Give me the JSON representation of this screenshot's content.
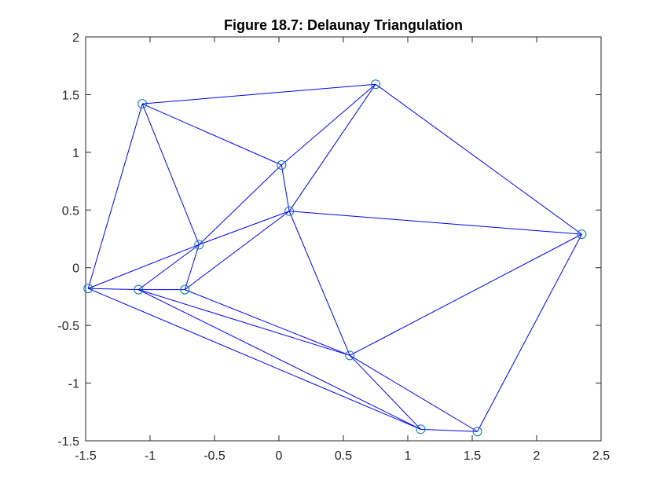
{
  "chart_data": {
    "type": "scatter",
    "title": "Figure 18.7: Delaunay Triangulation",
    "xlabel": "",
    "ylabel": "",
    "xlim": [
      -1.5,
      2.5
    ],
    "ylim": [
      -1.5,
      2
    ],
    "xticks": [
      -1.5,
      -1,
      -0.5,
      0,
      0.5,
      1,
      1.5,
      2,
      2.5
    ],
    "xtick_labels": [
      "-1.5",
      "-1",
      "-0.5",
      "0",
      "0.5",
      "1",
      "1.5",
      "2",
      "2.5"
    ],
    "yticks": [
      -1.5,
      -1,
      -0.5,
      0,
      0.5,
      1,
      1.5,
      2
    ],
    "ytick_labels": [
      "-1.5",
      "-1",
      "-0.5",
      "0",
      "0.5",
      "1",
      "1.5",
      "2"
    ],
    "grid": false,
    "line_color": "#0000ff",
    "marker_color": "#0072bd",
    "points": [
      {
        "x": -1.06,
        "y": 1.42
      },
      {
        "x": 0.75,
        "y": 1.59
      },
      {
        "x": 0.02,
        "y": 0.89
      },
      {
        "x": 0.08,
        "y": 0.49
      },
      {
        "x": -0.62,
        "y": 0.2
      },
      {
        "x": 2.35,
        "y": 0.29
      },
      {
        "x": -1.48,
        "y": -0.18
      },
      {
        "x": -1.09,
        "y": -0.19
      },
      {
        "x": -0.73,
        "y": -0.19
      },
      {
        "x": 0.55,
        "y": -0.76
      },
      {
        "x": 1.1,
        "y": -1.4
      },
      {
        "x": 1.54,
        "y": -1.42
      }
    ],
    "edges": [
      [
        0,
        1
      ],
      [
        0,
        2
      ],
      [
        0,
        4
      ],
      [
        0,
        6
      ],
      [
        1,
        2
      ],
      [
        1,
        3
      ],
      [
        1,
        5
      ],
      [
        2,
        3
      ],
      [
        2,
        4
      ],
      [
        3,
        4
      ],
      [
        3,
        8
      ],
      [
        3,
        5
      ],
      [
        3,
        9
      ],
      [
        4,
        6
      ],
      [
        4,
        7
      ],
      [
        4,
        8
      ],
      [
        5,
        9
      ],
      [
        5,
        11
      ],
      [
        6,
        7
      ],
      [
        6,
        10
      ],
      [
        7,
        8
      ],
      [
        7,
        9
      ],
      [
        7,
        10
      ],
      [
        8,
        9
      ],
      [
        9,
        10
      ],
      [
        9,
        11
      ],
      [
        10,
        11
      ]
    ]
  }
}
